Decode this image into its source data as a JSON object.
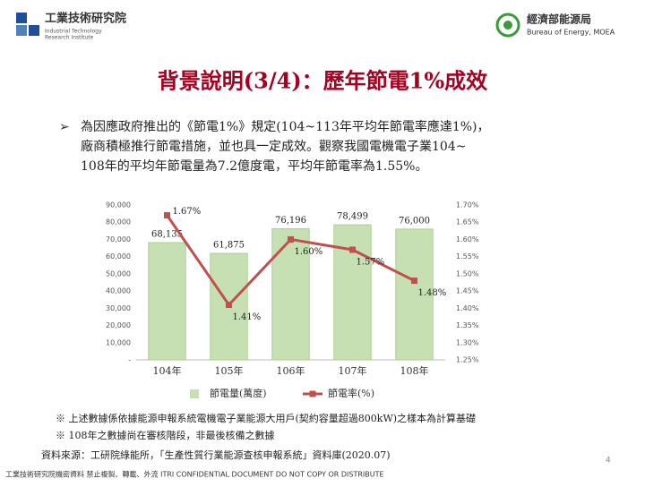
{
  "header": {
    "left_logo": "工業技術研究院",
    "left_logo_sub": [
      "Industrial Technology",
      "Research Institute"
    ],
    "right_logo": "經濟部能源局",
    "right_logo_sub": "Bureau of Energy, MOEA"
  },
  "title": "背景說明(3/4)：歷年節電1%成效",
  "bullet": [
    "為因應政府推出的《節電1%》規定(104~113年平均年節電率應達1%)，",
    "廠商積極推行節電措施，並也具一定成效。觀察我國電機電子業104~",
    "108年的平均年節電量為7.2億度電，平均年節電率為1.55%。"
  ],
  "chart_data": {
    "type": "bar_line",
    "categories": [
      "104年",
      "105年",
      "106年",
      "107年",
      "108年"
    ],
    "series": [
      {
        "name": "節電量(萬度)",
        "type": "bar",
        "color": "#c6e0b4",
        "values": [
          68135,
          61875,
          76196,
          78499,
          76000
        ],
        "value_labels": [
          "68,135",
          "61,875",
          "76,196",
          "78,499",
          "76,000"
        ]
      },
      {
        "name": "節電率(%)",
        "type": "line",
        "axis": "y2",
        "color": "#c0504d",
        "values": [
          1.67,
          1.41,
          1.6,
          1.57,
          1.48
        ],
        "value_labels": [
          "1.67%",
          "1.41%",
          "1.60%",
          "1.57%",
          "1.48%"
        ]
      }
    ],
    "ylim": [
      0,
      90000
    ],
    "yticks": [
      {
        "value": 0,
        "label": "-"
      },
      {
        "value": 10000,
        "label": "10,000"
      },
      {
        "value": 20000,
        "label": "20,000"
      },
      {
        "value": 30000,
        "label": "30,000"
      },
      {
        "value": 40000,
        "label": "40,000"
      },
      {
        "value": 50000,
        "label": "50,000"
      },
      {
        "value": 60000,
        "label": "60,000"
      },
      {
        "value": 70000,
        "label": "70,000"
      },
      {
        "value": 80000,
        "label": "80,000"
      },
      {
        "value": 90000,
        "label": "90,000"
      }
    ],
    "y2lim": [
      1.25,
      1.7
    ],
    "y2ticks": [
      {
        "value": 1.25,
        "label": "1.25%"
      },
      {
        "value": 1.3,
        "label": "1.30%"
      },
      {
        "value": 1.35,
        "label": "1.35%"
      },
      {
        "value": 1.4,
        "label": "1.40%"
      },
      {
        "value": 1.45,
        "label": "1.45%"
      },
      {
        "value": 1.5,
        "label": "1.50%"
      },
      {
        "value": 1.55,
        "label": "1.55%"
      },
      {
        "value": 1.6,
        "label": "1.60%"
      },
      {
        "value": 1.65,
        "label": "1.65%"
      },
      {
        "value": 1.7,
        "label": "1.70%"
      }
    ],
    "legend": "bottom",
    "grid": false
  },
  "notes": [
    "※ 上述數據係依據能源申報系統電機電子業能源大用戶(契約容量超過800kW)之樣本為計算基礎",
    "※ 108年之數據尚在審核階段，非最後核備之數據"
  ],
  "source": "資料來源：工研院綠能所，「生產性質行業能源查核申報系統」資料庫(2020.07)",
  "footer": "工業技術研究院機密資料 禁止複製、轉載、外流 ITRI CONFIDENTIAL DOCUMENT DO NOT COPY OR DISTRIBUTE",
  "page_number": "4"
}
